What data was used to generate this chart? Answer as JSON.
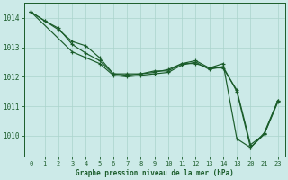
{
  "title": "Graphe pression niveau de la mer (hPa)",
  "bg_color": "#cceae8",
  "grid_color": "#aad4cc",
  "line_color": "#1a5c2a",
  "marker_color": "#1a5c2a",
  "series": [
    {
      "x": [
        0,
        1,
        2,
        3,
        4,
        5,
        6,
        7,
        8,
        9,
        10,
        11,
        12,
        13,
        14,
        18,
        20,
        21,
        23
      ],
      "y": [
        1014.2,
        1013.9,
        1013.6,
        1013.2,
        1013.05,
        1012.65,
        1012.1,
        1012.1,
        1012.1,
        1012.2,
        1012.2,
        1012.45,
        1012.45,
        1012.3,
        1012.45,
        1009.9,
        1009.6,
        1010.1,
        1011.2
      ]
    },
    {
      "x": [
        0,
        1,
        2,
        3,
        4,
        5,
        6,
        7,
        8,
        9,
        10,
        11,
        12,
        13,
        14,
        18,
        20,
        21,
        23
      ],
      "y": [
        1014.2,
        1013.9,
        1013.65,
        1013.1,
        1012.8,
        1012.55,
        1012.1,
        1012.05,
        1012.1,
        1012.15,
        1012.25,
        1012.45,
        1012.55,
        1012.3,
        1012.3,
        1011.55,
        1009.7,
        1010.05,
        1011.2
      ]
    },
    {
      "x": [
        0,
        3,
        4,
        5,
        6,
        7,
        8,
        9,
        10,
        11,
        12,
        13,
        14,
        18,
        20,
        21,
        23
      ],
      "y": [
        1014.2,
        1012.85,
        1012.65,
        1012.45,
        1012.05,
        1012.0,
        1012.05,
        1012.1,
        1012.15,
        1012.4,
        1012.5,
        1012.25,
        1012.35,
        1011.5,
        1009.6,
        1010.05,
        1011.15
      ]
    }
  ],
  "xtick_vals": [
    0,
    1,
    2,
    3,
    4,
    5,
    6,
    7,
    8,
    9,
    10,
    11,
    12,
    13,
    14,
    18,
    20,
    21,
    23
  ],
  "xtick_labels": [
    "0",
    "1",
    "2",
    "3",
    "4",
    "5",
    "6",
    "7",
    "8",
    "9",
    "10",
    "11",
    "12",
    "13",
    "14",
    "18",
    "20",
    "21",
    "23"
  ],
  "yticks": [
    1010,
    1011,
    1012,
    1013,
    1014
  ],
  "ylim": [
    1009.3,
    1014.5
  ],
  "linewidth": 0.85,
  "markersize": 2.8,
  "xlabel_fontsize": 5.0,
  "ylabel_fontsize": 5.5,
  "title_fontsize": 5.5
}
